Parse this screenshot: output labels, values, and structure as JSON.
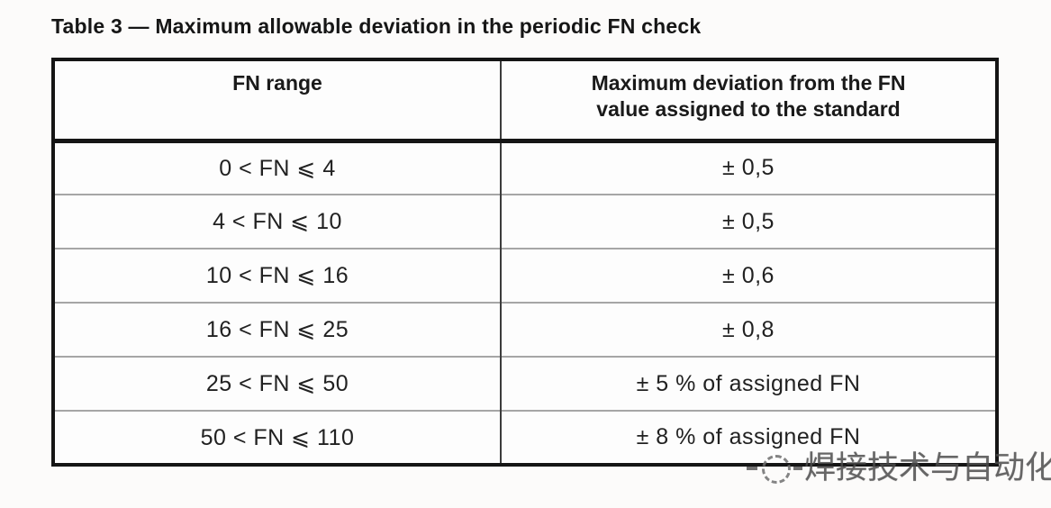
{
  "caption": "Table 3 — Maximum allowable deviation in the periodic FN check",
  "table": {
    "headers": {
      "fn_range": "FN range",
      "max_deviation": "Maximum deviation from the FN value assigned to the standard"
    },
    "rows": [
      {
        "range": "0 < FN ⩽ 4",
        "deviation": "± 0,5"
      },
      {
        "range": "4 < FN ⩽ 10",
        "deviation": "± 0,5"
      },
      {
        "range": "10 < FN ⩽ 16",
        "deviation": "± 0,6"
      },
      {
        "range": "16 < FN ⩽ 25",
        "deviation": "± 0,8"
      },
      {
        "range": "25 < FN ⩽ 50",
        "deviation": "± 5 % of assigned FN"
      },
      {
        "range": "50 < FN ⩽ 110",
        "deviation": "± 8 % of assigned FN"
      }
    ]
  },
  "watermark": {
    "text": "焊接技术与自动化",
    "logo_icon": "dashed-circle-logo",
    "text_color": "#4c4c4c"
  },
  "colors": {
    "page_background": "#fcfbfa",
    "table_border": "#151515",
    "row_divider": "#a6a6a6",
    "column_divider": "#3c3c3c",
    "body_text": "#212121"
  }
}
